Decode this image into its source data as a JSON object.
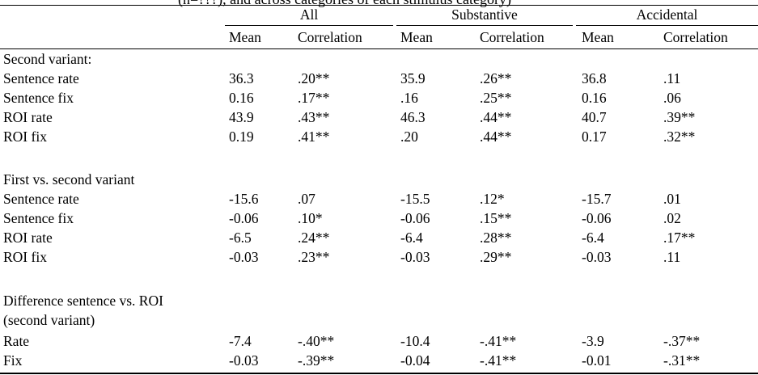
{
  "caption_fragment": "(n=???), and across categories of each stimulus category)",
  "column_groups": [
    "All",
    "Substantive",
    "Accidental"
  ],
  "sub_headers": [
    "Mean",
    "Correlation",
    "Mean",
    "Correlation",
    "Mean",
    "Correlation"
  ],
  "sections": [
    {
      "title": [
        "Second variant:"
      ],
      "rows": [
        {
          "label": "Sentence rate",
          "values": [
            "36.3",
            ".20**",
            "35.9",
            ".26**",
            "36.8",
            ".11"
          ]
        },
        {
          "label": "Sentence fix",
          "values": [
            "0.16",
            ".17**",
            ".16",
            ".25**",
            "0.16",
            ".06"
          ]
        },
        {
          "label": "ROI rate",
          "values": [
            "43.9",
            ".43**",
            "46.3",
            ".44**",
            "40.7",
            ".39**"
          ]
        },
        {
          "label": "ROI fix",
          "values": [
            "0.19",
            ".41**",
            ".20",
            ".44**",
            "0.17",
            ".32**"
          ]
        }
      ]
    },
    {
      "title": [
        "First vs. second variant"
      ],
      "rows": [
        {
          "label": "Sentence rate",
          "values": [
            "-15.6",
            ".07",
            "-15.5",
            ".12*",
            "-15.7",
            ".01"
          ]
        },
        {
          "label": "Sentence fix",
          "values": [
            "-0.06",
            ".10*",
            "-0.06",
            ".15**",
            "-0.06",
            ".02"
          ]
        },
        {
          "label": "ROI rate",
          "values": [
            "-6.5",
            ".24**",
            "-6.4",
            ".28**",
            "-6.4",
            ".17**"
          ]
        },
        {
          "label": "ROI fix",
          "values": [
            "-0.03",
            ".23**",
            "-0.03",
            ".29**",
            "-0.03",
            ".11"
          ]
        }
      ]
    },
    {
      "title": [
        "Difference sentence vs. ROI",
        "(second variant)"
      ],
      "rows": [
        {
          "label": "Rate",
          "values": [
            "-7.4",
            "-.40**",
            "-10.4",
            "-.41**",
            "-3.9",
            "-.37**"
          ]
        },
        {
          "label": "Fix",
          "values": [
            "-0.03",
            "-.39**",
            "-0.04",
            "-.41**",
            "-0.01",
            "-.31**"
          ]
        }
      ]
    }
  ]
}
